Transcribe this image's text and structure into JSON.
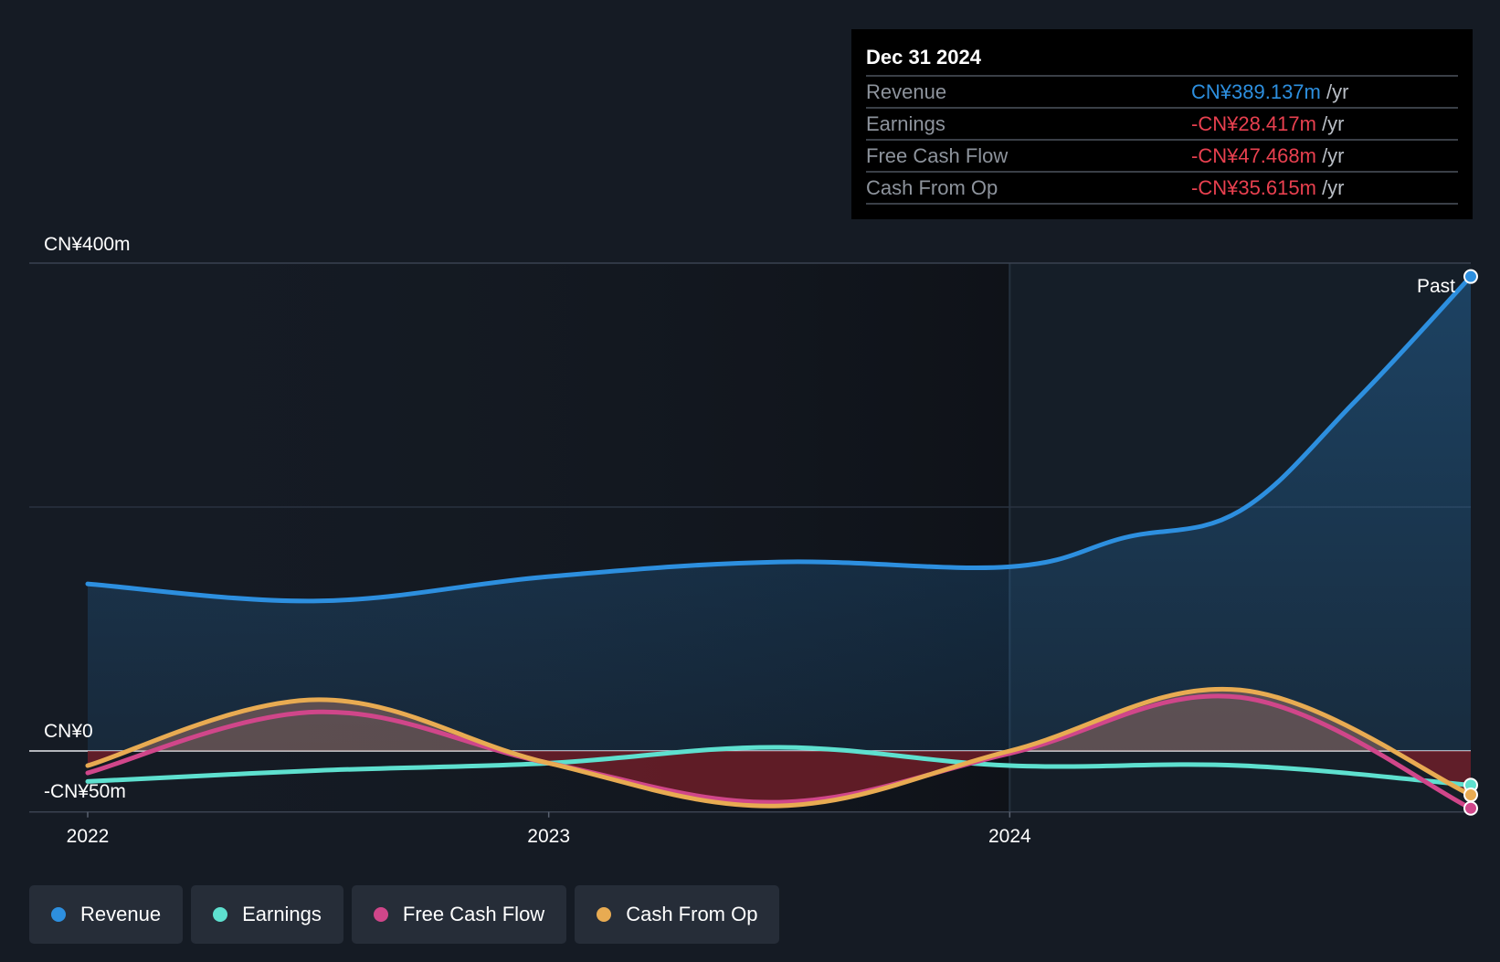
{
  "tooltip": {
    "date": "Dec 31 2024",
    "rows": [
      {
        "label": "Revenue",
        "value": "CN¥389.137m",
        "unit": " /yr",
        "color": "#2d8fdf"
      },
      {
        "label": "Earnings",
        "value": "-CN¥28.417m",
        "unit": " /yr",
        "color": "#e8404f"
      },
      {
        "label": "Free Cash Flow",
        "value": "-CN¥47.468m",
        "unit": " /yr",
        "color": "#e8404f"
      },
      {
        "label": "Cash From Op",
        "value": "-CN¥35.615m",
        "unit": " /yr",
        "color": "#e8404f"
      }
    ]
  },
  "legend": [
    {
      "label": "Revenue",
      "color": "#2d8fdf"
    },
    {
      "label": "Earnings",
      "color": "#5ee0cf"
    },
    {
      "label": "Free Cash Flow",
      "color": "#d0468a"
    },
    {
      "label": "Cash From Op",
      "color": "#e8ab52"
    }
  ],
  "chart_data": {
    "type": "line",
    "y_axis_labels": [
      "CN¥400m",
      "CN¥0",
      "-CN¥50m"
    ],
    "x_tick_labels": [
      "2022",
      "2023",
      "2024"
    ],
    "past_label": "Past",
    "ylim": [
      -50,
      400
    ],
    "xlim": [
      2022.0,
      2025.0
    ],
    "past_region_start": 2024.0,
    "series": [
      {
        "name": "Revenue",
        "color": "#2d8fdf",
        "points": [
          [
            2022.0,
            137
          ],
          [
            2022.5,
            123
          ],
          [
            2023.0,
            143
          ],
          [
            2023.5,
            155
          ],
          [
            2024.0,
            151
          ],
          [
            2024.25,
            175
          ],
          [
            2024.5,
            197
          ],
          [
            2024.75,
            287
          ],
          [
            2025.0,
            389
          ]
        ]
      },
      {
        "name": "Earnings",
        "color": "#5ee0cf",
        "points": [
          [
            2022.0,
            -25
          ],
          [
            2022.5,
            -16
          ],
          [
            2023.0,
            -10
          ],
          [
            2023.5,
            3
          ],
          [
            2024.0,
            -12
          ],
          [
            2024.5,
            -12
          ],
          [
            2025.0,
            -28
          ]
        ]
      },
      {
        "name": "Free Cash Flow",
        "color": "#d0468a",
        "points": [
          [
            2022.0,
            -18
          ],
          [
            2022.5,
            32
          ],
          [
            2023.0,
            -10
          ],
          [
            2023.5,
            -42
          ],
          [
            2024.0,
            -2
          ],
          [
            2024.5,
            44
          ],
          [
            2025.0,
            -47
          ]
        ]
      },
      {
        "name": "Cash From Op",
        "color": "#e8ab52",
        "points": [
          [
            2022.0,
            -12
          ],
          [
            2022.5,
            42
          ],
          [
            2023.0,
            -10
          ],
          [
            2023.5,
            -45
          ],
          [
            2024.0,
            0
          ],
          [
            2024.5,
            50
          ],
          [
            2025.0,
            -36
          ]
        ]
      }
    ]
  }
}
